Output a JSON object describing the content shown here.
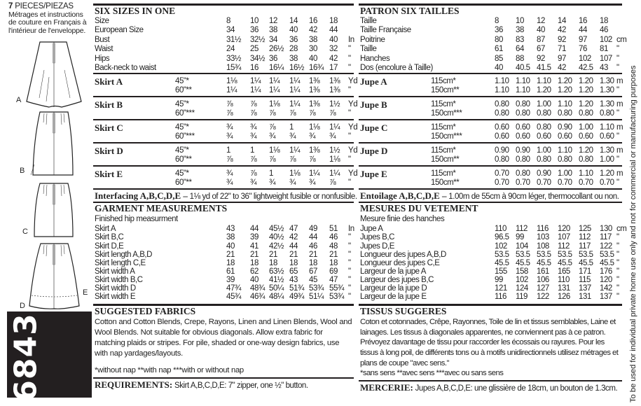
{
  "left": {
    "pieces_count": "7",
    "pieces_label": "PIECES/PIEZAS",
    "french_note": [
      "Métrages et instructions",
      "de couture en Français à",
      "l'intérieur de l'enveloppe."
    ],
    "view_labels": [
      "A",
      "B",
      "C",
      "D",
      "E"
    ],
    "pattern_number": "6843"
  },
  "english": {
    "title": "SIX SIZES IN ONE",
    "sizes": [
      {
        "label": "Size",
        "values": [
          "8",
          "10",
          "12",
          "14",
          "16",
          "18"
        ],
        "unit": ""
      },
      {
        "label": "European Size",
        "values": [
          "34",
          "36",
          "38",
          "40",
          "42",
          "44"
        ],
        "unit": ""
      },
      {
        "label": "Bust",
        "values": [
          "31½",
          "32½",
          "34",
          "36",
          "38",
          "40"
        ],
        "unit": "In"
      },
      {
        "label": "Waist",
        "values": [
          "24",
          "25",
          "26½",
          "28",
          "30",
          "32"
        ],
        "unit": "\""
      },
      {
        "label": "Hips",
        "values": [
          "33½",
          "34½",
          "36",
          "38",
          "40",
          "42"
        ],
        "unit": "\""
      },
      {
        "label": "Back-neck to waist",
        "values": [
          "15¾",
          "16",
          "16¼",
          "16½",
          "16¾",
          "17"
        ],
        "unit": "\""
      }
    ],
    "yardage": [
      {
        "name": "Skirt A",
        "rows": [
          {
            "width": "45\"*",
            "values": [
              "1⅛",
              "1¼",
              "1¼",
              "1¼",
              "1⅜",
              "1⅜"
            ],
            "unit": "Yd"
          },
          {
            "width": "60\"**",
            "values": [
              "1¼",
              "1¼",
              "1¼",
              "1¼",
              "1⅜",
              "1⅜"
            ],
            "unit": "\""
          }
        ]
      },
      {
        "name": "Skirt B",
        "rows": [
          {
            "width": "45\"*",
            "values": [
              "⅞",
              "⅞",
              "1⅛",
              "1¼",
              "1⅜",
              "1½"
            ],
            "unit": "Yd"
          },
          {
            "width": "60\"***",
            "values": [
              "⅞",
              "⅞",
              "⅞",
              "⅞",
              "⅞",
              "⅞"
            ],
            "unit": "\""
          }
        ]
      },
      {
        "name": "Skirt C",
        "rows": [
          {
            "width": "45\"*",
            "values": [
              "¾",
              "¾",
              "⅞",
              "1",
              "1⅛",
              "1¼"
            ],
            "unit": "Yd"
          },
          {
            "width": "60\"***",
            "values": [
              "¾",
              "¾",
              "¾",
              "¾",
              "¾",
              "¾"
            ],
            "unit": "\""
          }
        ]
      },
      {
        "name": "Skirt D",
        "rows": [
          {
            "width": "45\"*",
            "values": [
              "1",
              "1",
              "1⅛",
              "1¼",
              "1⅜",
              "1½"
            ],
            "unit": "Yd"
          },
          {
            "width": "60\"**",
            "values": [
              "⅞",
              "⅞",
              "⅞",
              "⅞",
              "⅞",
              "1⅛"
            ],
            "unit": "\""
          }
        ]
      },
      {
        "name": "Skirt E",
        "rows": [
          {
            "width": "45\"*",
            "values": [
              "¾",
              "⅞",
              "1",
              "1⅛",
              "1¼",
              "1¼"
            ],
            "unit": "Yd"
          },
          {
            "width": "60\"**",
            "values": [
              "¾",
              "¾",
              "¾",
              "¾",
              "¾",
              "⅞"
            ],
            "unit": "\""
          }
        ]
      }
    ],
    "interfacing_label": "Interfacing A,B,C,D,E –",
    "interfacing_text": " 1⅛ yd of 22\" to 36\" lightweight fusible or nonfusible.",
    "garment_title": "GARMENT MEASUREMENTS",
    "garment_subtitle": "Finished hip measurment",
    "garment": [
      {
        "label": "Skirt A",
        "values": [
          "43",
          "44",
          "45½",
          "47",
          "49",
          "51"
        ],
        "unit": "In"
      },
      {
        "label": "Skirt B,C",
        "values": [
          "38",
          "39",
          "40½",
          "42",
          "44",
          "46"
        ],
        "unit": "\""
      },
      {
        "label": "Skirt D,E",
        "values": [
          "40",
          "41",
          "42½",
          "44",
          "46",
          "48"
        ],
        "unit": "\""
      },
      {
        "label": "Skirt length A,B,D",
        "values": [
          "21",
          "21",
          "21",
          "21",
          "21",
          "21"
        ],
        "unit": "\""
      },
      {
        "label": "Skirt length C,E",
        "values": [
          "18",
          "18",
          "18",
          "18",
          "18",
          "18"
        ],
        "unit": "\""
      },
      {
        "label": "Skirt width A",
        "values": [
          "61",
          "62",
          "63½",
          "65",
          "67",
          "69"
        ],
        "unit": "\""
      },
      {
        "label": "Skirt width B,C",
        "values": [
          "39",
          "40",
          "41½",
          "43",
          "45",
          "47"
        ],
        "unit": "\""
      },
      {
        "label": "Skirt width D",
        "values": [
          "47¾",
          "48¾",
          "50¼",
          "51¾",
          "53¾",
          "55¾"
        ],
        "unit": "\""
      },
      {
        "label": "Skirt width E",
        "values": [
          "45¾",
          "46¾",
          "48¼",
          "49¾",
          "51¼",
          "53¾"
        ],
        "unit": "\""
      }
    ],
    "fabrics_title": "SUGGESTED FABRICS",
    "fabrics_text": "Cotton and Cotton Blends, Crepe, Rayons, Linen and Linen Blends, Wool and Wool Blends. Not suitable for obvious diagonals. Allow extra fabric for matching plaids or stripes. For pile, shaded or one-way design fabrics, use with nap yardages/layouts.",
    "footnote": "*without nap **with nap ***with or without nap",
    "requirements_label": "REQUIREMENTS:",
    "requirements_text": " Skirt A,B,C,D,E: 7\" zipper, one ½\" button."
  },
  "french": {
    "title": "PATRON SIX TAILLES",
    "sizes": [
      {
        "label": "Taille",
        "values": [
          "8",
          "10",
          "12",
          "14",
          "16",
          "18"
        ],
        "unit": ""
      },
      {
        "label": "Taille Française",
        "values": [
          "36",
          "38",
          "40",
          "42",
          "44",
          "46"
        ],
        "unit": ""
      },
      {
        "label": "Poitrine",
        "values": [
          "80",
          "83",
          "87",
          "92",
          "97",
          "102"
        ],
        "unit": "cm"
      },
      {
        "label": "Taille",
        "values": [
          "61",
          "64",
          "67",
          "71",
          "76",
          "81"
        ],
        "unit": "\""
      },
      {
        "label": "Hanches",
        "values": [
          "85",
          "88",
          "92",
          "97",
          "102",
          "107"
        ],
        "unit": "\""
      },
      {
        "label": "Dos (encolure à Taille)",
        "values": [
          "40",
          "40.5",
          "41.5",
          "42",
          "42.5",
          "43"
        ],
        "unit": "\""
      }
    ],
    "yardage": [
      {
        "name": "Jupe A",
        "rows": [
          {
            "width": "115cm*",
            "values": [
              "1.10",
              "1.10",
              "1.10",
              "1.20",
              "1.20",
              "1.30"
            ],
            "unit": "m"
          },
          {
            "width": "150cm**",
            "values": [
              "1.10",
              "1.10",
              "1.20",
              "1.20",
              "1.20",
              "1.30"
            ],
            "unit": "\""
          }
        ]
      },
      {
        "name": "Jupe B",
        "rows": [
          {
            "width": "115cm*",
            "values": [
              "0.80",
              "0.80",
              "1.00",
              "1.10",
              "1.20",
              "1.30"
            ],
            "unit": "m"
          },
          {
            "width": "150cm***",
            "values": [
              "0.80",
              "0.80",
              "0.80",
              "0.80",
              "0.80",
              "0.80"
            ],
            "unit": "\""
          }
        ]
      },
      {
        "name": "Jupe C",
        "rows": [
          {
            "width": "115cm*",
            "values": [
              "0.60",
              "0.60",
              "0.80",
              "0.90",
              "1.00",
              "1.10"
            ],
            "unit": "m"
          },
          {
            "width": "150cm***",
            "values": [
              "0.60",
              "0.60",
              "0.60",
              "0.60",
              "0.60",
              "0.60"
            ],
            "unit": "\""
          }
        ]
      },
      {
        "name": "Jupe D",
        "rows": [
          {
            "width": "115cm*",
            "values": [
              "0.90",
              "0.90",
              "1.00",
              "1.10",
              "1.20",
              "1.30"
            ],
            "unit": "m"
          },
          {
            "width": "150cm**",
            "values": [
              "0.80",
              "0.80",
              "0.80",
              "0.80",
              "0.80",
              "1.00"
            ],
            "unit": "\""
          }
        ]
      },
      {
        "name": "Jupe E",
        "rows": [
          {
            "width": "115cm*",
            "values": [
              "0.70",
              "0.80",
              "0.90",
              "1.00",
              "1.10",
              "1.20"
            ],
            "unit": "m"
          },
          {
            "width": "150cm**",
            "values": [
              "0.70",
              "0.70",
              "0.70",
              "0.70",
              "0.70",
              "0.70"
            ],
            "unit": "\""
          }
        ]
      }
    ],
    "interfacing_label": "Entoilage A,B,C,D,E –",
    "interfacing_text": " 1.00m de 55cm à 90cm léger, thermocollant ou non.",
    "garment_title": "MESURES DU VETEMENT",
    "garment_subtitle": "Mesure finie des hanches",
    "garment": [
      {
        "label": "Jupe A",
        "values": [
          "110",
          "112",
          "116",
          "120",
          "125",
          "130"
        ],
        "unit": "cm"
      },
      {
        "label": "Jupes B,C",
        "values": [
          "96.5",
          "99",
          "103",
          "107",
          "112",
          "117"
        ],
        "unit": "\""
      },
      {
        "label": "Jupes D,E",
        "values": [
          "102",
          "104",
          "108",
          "112",
          "117",
          "122"
        ],
        "unit": "\""
      },
      {
        "label": "Longueur des jupes A,B,D",
        "values": [
          "53.5",
          "53.5",
          "53.5",
          "53.5",
          "53.5",
          "53.5"
        ],
        "unit": "\""
      },
      {
        "label": "Longueur des jupes C,E",
        "values": [
          "45.5",
          "45.5",
          "45.5",
          "45.5",
          "45.5",
          "45.5"
        ],
        "unit": "\""
      },
      {
        "label": "Largeur de la jupe A",
        "values": [
          "155",
          "158",
          "161",
          "165",
          "171",
          "176"
        ],
        "unit": "\""
      },
      {
        "label": "Largeur des jupes B,C",
        "values": [
          "99",
          "102",
          "106",
          "110",
          "115",
          "120"
        ],
        "unit": "\""
      },
      {
        "label": "Largeur de la jupe D",
        "values": [
          "121",
          "124",
          "127",
          "131",
          "137",
          "142"
        ],
        "unit": "\""
      },
      {
        "label": "Largeur de la jupe E",
        "values": [
          "116",
          "119",
          "122",
          "126",
          "131",
          "137"
        ],
        "unit": "\""
      }
    ],
    "fabrics_title": "TISSUS SUGGERES",
    "fabrics_text": "Coton et cotonnades, Crêpe, Rayonnes, Toile de lin et tissus semblables, Laine et lainages. Les tissus à diagonales apparentes, ne conviennent pas à ce patron. Prévoyez davantage de tissu pour raccorder les écossais ou rayures. Pour les tissus à long poil, de différents tons ou à motifs unidirectionnels utilisez métrages et plans de coupe \"avec sens.\"",
    "footnote": "*sans sens **avec sens ***avec ou sans sens",
    "requirements_label": "MERCERIE:",
    "requirements_text": " Jupes A,B,C,D,E: une glissière de 18cm, un bouton de 1.3cm."
  },
  "disclaimer": "To be used for individual private home use only and not for commercial or manufacturing purposes"
}
